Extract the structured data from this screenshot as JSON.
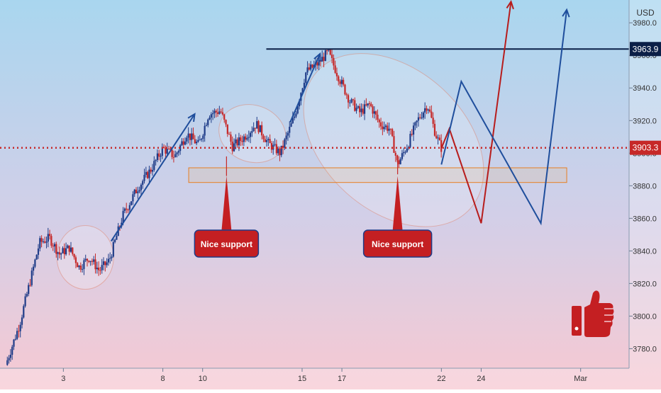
{
  "chart_data": {
    "type": "candlestick",
    "currency": "USD",
    "y_ticks": [
      3780,
      3800,
      3820,
      3840,
      3860,
      3880,
      3900,
      3920,
      3940,
      3960,
      3980
    ],
    "y_tick_labels": [
      "3780.0",
      "3800.0",
      "3820.0",
      "3840.0",
      "3860.0",
      "3880.0",
      "3900.0",
      "3920.0",
      "3940.0",
      "3960.0",
      "3980.0"
    ],
    "x_ticks": [
      3,
      8,
      10,
      15,
      17,
      22,
      24,
      29
    ],
    "x_tick_labels": [
      "3",
      "8",
      "10",
      "15",
      "17",
      "22",
      "24",
      "Mar"
    ],
    "ylim": [
      3768,
      3994
    ],
    "xlim": [
      0.1,
      30.9
    ],
    "resistance_level": 3963.9,
    "resistance_label": "3963.9",
    "current_price": 3903.3,
    "current_price_label": "3903.3",
    "support_zone": {
      "x0": 9.3,
      "x1": 28.3,
      "low": 3882,
      "high": 3891
    },
    "price_path": [
      [
        0.1,
        3770
      ],
      [
        0.8,
        3795
      ],
      [
        1.3,
        3820
      ],
      [
        1.8,
        3845
      ],
      [
        2.3,
        3848
      ],
      [
        2.8,
        3838
      ],
      [
        3.3,
        3842
      ],
      [
        3.8,
        3830
      ],
      [
        4.3,
        3836
      ],
      [
        4.8,
        3828
      ],
      [
        5.3,
        3834
      ],
      [
        6.0,
        3862
      ],
      [
        6.7,
        3878
      ],
      [
        7.4,
        3890
      ],
      [
        8.0,
        3903
      ],
      [
        8.6,
        3898
      ],
      [
        9.2,
        3912
      ],
      [
        9.8,
        3905
      ],
      [
        10.3,
        3924
      ],
      [
        10.9,
        3926
      ],
      [
        11.5,
        3904
      ],
      [
        12.1,
        3910
      ],
      [
        12.7,
        3918
      ],
      [
        13.3,
        3906
      ],
      [
        13.9,
        3900
      ],
      [
        14.6,
        3922
      ],
      [
        15.2,
        3950
      ],
      [
        15.8,
        3955
      ],
      [
        16.3,
        3962
      ],
      [
        16.9,
        3945
      ],
      [
        17.4,
        3932
      ],
      [
        17.9,
        3925
      ],
      [
        18.4,
        3930
      ],
      [
        18.9,
        3918
      ],
      [
        19.4,
        3915
      ],
      [
        19.8,
        3893
      ],
      [
        20.3,
        3905
      ],
      [
        20.8,
        3920
      ],
      [
        21.3,
        3930
      ],
      [
        21.7,
        3912
      ],
      [
        22.0,
        3903
      ]
    ],
    "projection_red": [
      [
        22.0,
        3903
      ],
      [
        22.4,
        3915
      ],
      [
        24.0,
        3857
      ],
      [
        25.5,
        3993
      ]
    ],
    "projection_blue": [
      [
        22.0,
        3893
      ],
      [
        23.0,
        3944
      ],
      [
        27.0,
        3857
      ],
      [
        28.3,
        3988
      ]
    ],
    "annotations": [
      {
        "text": "Nice support",
        "x": 11.2,
        "y": 3886
      },
      {
        "text": "Nice support",
        "x": 19.8,
        "y": 3886
      }
    ],
    "colors": {
      "up_candle": "#1f3c88",
      "down_candle": "#c62828",
      "resistance": "#0b1f47",
      "dotted_price": "#c62828",
      "projection_red": "#b71c1c",
      "projection_blue": "#1f4e9c",
      "trend_arrow": "#1f4e9c",
      "zone": "#e67e22",
      "badge": "#c41f22",
      "thumb": "#c41f22"
    }
  }
}
